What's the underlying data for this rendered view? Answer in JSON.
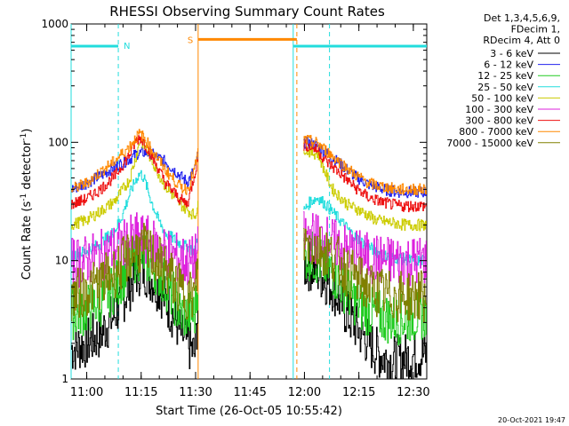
{
  "chart_data": {
    "type": "line",
    "title": "RHESSI Observing Summary Count Rates",
    "xlabel": "Start Time (26-Oct-05 10:55:42)",
    "ylabel_main": "Count Rate (s",
    "ylabel_sup1": "-1",
    "ylabel_mid": " detector",
    "ylabel_sup2": "-1",
    "ylabel_end": ")",
    "yscale": "log",
    "ylim": [
      1,
      1000
    ],
    "xlim_minutes": [
      0,
      98
    ],
    "x_ticks": [
      {
        "label": "11:00",
        "min": 4.3
      },
      {
        "label": "11:15",
        "min": 19.3
      },
      {
        "label": "11:30",
        "min": 34.3
      },
      {
        "label": "11:45",
        "min": 49.3
      },
      {
        "label": "12:00",
        "min": 64.3
      },
      {
        "label": "12:15",
        "min": 79.3
      },
      {
        "label": "12:30",
        "min": 94.3
      }
    ],
    "y_ticks": [
      {
        "label": "1",
        "value": 1
      },
      {
        "label": "10",
        "value": 10
      },
      {
        "label": "100",
        "value": 100
      },
      {
        "label": "1000",
        "value": 1000
      }
    ],
    "legend_header": [
      "Det 1,3,4,5,6,9,",
      "FDecim 1,",
      "RDecim 4, Att 0"
    ],
    "series": [
      {
        "name": "3 - 6 keV",
        "color": "#000000",
        "x": [
          0,
          4,
          8,
          12,
          16,
          18,
          20,
          24,
          28,
          30,
          34,
          36,
          64,
          66,
          68,
          72,
          76,
          80,
          84,
          88,
          92,
          96,
          98
        ],
        "y": [
          1.8,
          2.0,
          2.4,
          3.5,
          6,
          8,
          8.5,
          6,
          3.5,
          2.5,
          1.6,
          12,
          9,
          9,
          8,
          6,
          3.5,
          2.4,
          1.7,
          1.4,
          1.5,
          1.6,
          1.6
        ]
      },
      {
        "name": "6 - 12 keV",
        "color": "#2222ee",
        "x": [
          0,
          4,
          8,
          12,
          16,
          18,
          20,
          22,
          26,
          30,
          32,
          34,
          36,
          64,
          66,
          68,
          70,
          74,
          78,
          82,
          86,
          90,
          94,
          98
        ],
        "y": [
          40,
          45,
          52,
          62,
          72,
          80,
          82,
          80,
          68,
          52,
          46,
          60,
          110,
          100,
          98,
          92,
          82,
          66,
          52,
          44,
          40,
          38,
          38,
          38
        ]
      },
      {
        "name": "12 - 25 keV",
        "color": "#22cc22",
        "x": [
          0,
          4,
          8,
          12,
          16,
          18,
          20,
          24,
          28,
          30,
          34,
          36,
          64,
          66,
          68,
          72,
          76,
          80,
          84,
          88,
          92,
          96,
          98
        ],
        "y": [
          3.5,
          3.8,
          4.5,
          6,
          9,
          11,
          11,
          8,
          5,
          3.5,
          3.5,
          17,
          11,
          11,
          10,
          8,
          5.5,
          4,
          3.5,
          3.2,
          3.2,
          3.5,
          3.5
        ]
      },
      {
        "name": "25 - 50 keV",
        "color": "#22dddd",
        "x": [
          0,
          4,
          8,
          12,
          14,
          16,
          18,
          19,
          20,
          22,
          24,
          26,
          30,
          34,
          36,
          64,
          66,
          68,
          70,
          74,
          78,
          82,
          86,
          90,
          94,
          98
        ],
        "y": [
          11,
          12,
          14,
          18,
          24,
          36,
          50,
          55,
          50,
          32,
          22,
          17,
          14,
          12,
          25,
          26,
          32,
          34,
          30,
          22,
          16,
          13,
          11,
          10.5,
          10,
          10
        ]
      },
      {
        "name": "50 - 100 keV",
        "color": "#cccc00",
        "x": [
          0,
          4,
          8,
          12,
          16,
          18,
          19,
          20,
          22,
          26,
          30,
          34,
          36,
          64,
          66,
          68,
          70,
          72,
          76,
          80,
          84,
          88,
          92,
          98
        ],
        "y": [
          20,
          22,
          26,
          32,
          48,
          80,
          105,
          95,
          72,
          42,
          30,
          24,
          36,
          90,
          82,
          80,
          55,
          40,
          30,
          26,
          22,
          21,
          20,
          20
        ]
      },
      {
        "name": "100 - 300 keV",
        "color": "#dd22dd",
        "x": [
          0,
          4,
          8,
          12,
          16,
          18,
          20,
          24,
          28,
          32,
          34,
          36,
          64,
          66,
          70,
          74,
          78,
          82,
          86,
          90,
          94,
          98
        ],
        "y": [
          9.5,
          10,
          11,
          12.5,
          14.5,
          15.5,
          15,
          13,
          11,
          9.5,
          10,
          16,
          16,
          16,
          15,
          13,
          11.5,
          10.5,
          10,
          10,
          10,
          10
        ]
      },
      {
        "name": "300 - 800 keV",
        "color": "#ee1111",
        "x": [
          0,
          4,
          8,
          12,
          16,
          18,
          19,
          20,
          22,
          26,
          30,
          32,
          34,
          36,
          64,
          66,
          68,
          70,
          74,
          78,
          82,
          86,
          90,
          94,
          98
        ],
        "y": [
          30,
          33,
          40,
          52,
          78,
          105,
          110,
          100,
          78,
          45,
          33,
          30,
          55,
          100,
          95,
          92,
          85,
          70,
          55,
          42,
          34,
          31,
          29,
          29,
          29
        ]
      },
      {
        "name": "800 - 7000 keV",
        "color": "#ff8800",
        "x": [
          0,
          4,
          8,
          12,
          16,
          18,
          19,
          20,
          22,
          26,
          30,
          32,
          34,
          36,
          64,
          66,
          68,
          70,
          74,
          78,
          82,
          86,
          90,
          94,
          98
        ],
        "y": [
          40,
          45,
          56,
          70,
          92,
          112,
          118,
          110,
          88,
          58,
          42,
          40,
          60,
          120,
          105,
          102,
          98,
          86,
          68,
          54,
          45,
          42,
          40,
          40,
          40
        ]
      },
      {
        "name": "7000 - 15000 keV",
        "color": "#808000",
        "x": [
          0,
          4,
          8,
          12,
          16,
          18,
          20,
          24,
          28,
          30,
          34,
          36,
          64,
          66,
          68,
          72,
          76,
          80,
          84,
          88,
          92,
          96,
          98
        ],
        "y": [
          5,
          5.5,
          6.5,
          8,
          11,
          12.5,
          12.5,
          10,
          7,
          5.5,
          5,
          20,
          14,
          14,
          13,
          11,
          8,
          6.5,
          5.5,
          5,
          5,
          5,
          5
        ]
      }
    ],
    "shading_markers": {
      "night_color": "#22dddd",
      "night_solid_min": [
        0.0,
        61.2
      ],
      "night_dashed_min": [
        13.0,
        71.2
      ],
      "saa_color": "#ff8800",
      "saa_solid_min": 35.0,
      "saa_dashed_min": 62.2,
      "night_label": "N",
      "saa_label": "S",
      "bar_y_value": 650,
      "saa_bar_y_value": 740,
      "bar_ranges_min": [
        [
          0,
          13.0
        ],
        [
          61.2,
          98
        ]
      ],
      "saa_bar_range_min": [
        35.0,
        62.2
      ]
    },
    "timestamp": "20-Oct-2021 19:47",
    "legend_position": "right"
  }
}
